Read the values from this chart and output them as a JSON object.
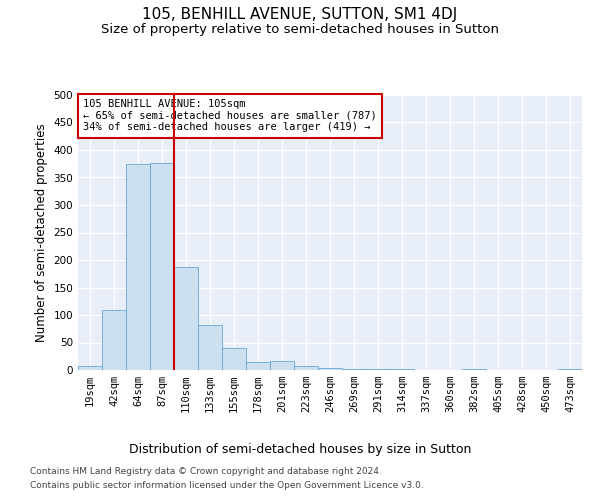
{
  "title": "105, BENHILL AVENUE, SUTTON, SM1 4DJ",
  "subtitle": "Size of property relative to semi-detached houses in Sutton",
  "xlabel": "Distribution of semi-detached houses by size in Sutton",
  "ylabel": "Number of semi-detached properties",
  "bar_color": "#cce0f0",
  "bar_edge_color": "#5599cc",
  "background_color": "#e8eef8",
  "grid_color": "#ffffff",
  "annotation_box_color": "#ffffff",
  "annotation_box_edge": "#cc0000",
  "vline_color": "#cc0000",
  "categories": [
    "19sqm",
    "42sqm",
    "64sqm",
    "87sqm",
    "110sqm",
    "133sqm",
    "155sqm",
    "178sqm",
    "201sqm",
    "223sqm",
    "246sqm",
    "269sqm",
    "291sqm",
    "314sqm",
    "337sqm",
    "360sqm",
    "382sqm",
    "405sqm",
    "428sqm",
    "450sqm",
    "473sqm"
  ],
  "values": [
    7,
    110,
    375,
    377,
    188,
    82,
    40,
    15,
    16,
    7,
    4,
    2,
    1,
    1,
    0,
    0,
    2,
    0,
    0,
    0,
    2
  ],
  "ylim": [
    0,
    500
  ],
  "yticks": [
    0,
    50,
    100,
    150,
    200,
    250,
    300,
    350,
    400,
    450,
    500
  ],
  "vline_bin_index": 4,
  "annotation_text": "105 BENHILL AVENUE: 105sqm\n← 65% of semi-detached houses are smaller (787)\n34% of semi-detached houses are larger (419) →",
  "footnote_line1": "Contains HM Land Registry data © Crown copyright and database right 2024.",
  "footnote_line2": "Contains public sector information licensed under the Open Government Licence v3.0.",
  "title_fontsize": 11,
  "subtitle_fontsize": 9.5,
  "ylabel_fontsize": 8.5,
  "xlabel_fontsize": 9,
  "tick_fontsize": 7.5,
  "annotation_fontsize": 7.5,
  "footnote_fontsize": 6.5
}
